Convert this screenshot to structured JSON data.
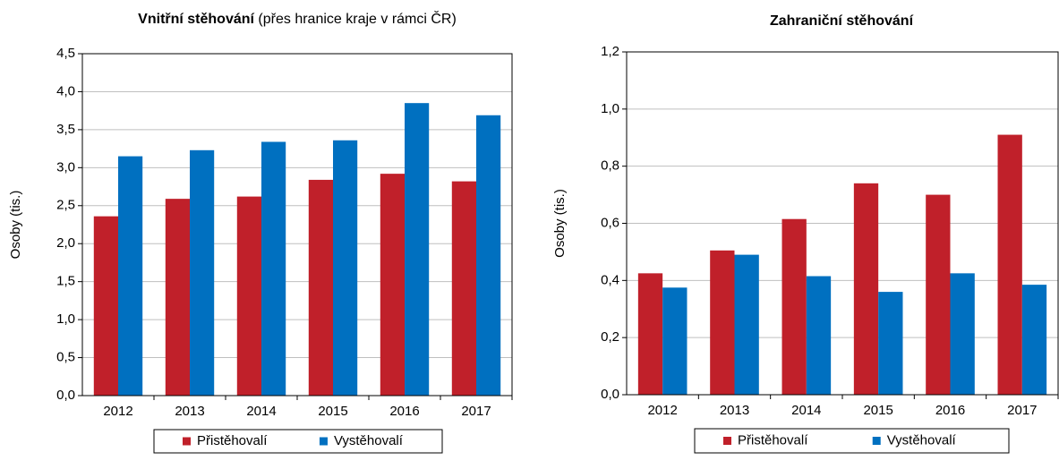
{
  "chart_data": [
    {
      "type": "bar",
      "title": "Vnitřní stěhování",
      "subtitle": "(přes hranice kraje v rámci ČR)",
      "y_label": "Osoby (tis.)",
      "categories": [
        "2012",
        "2013",
        "2014",
        "2015",
        "2016",
        "2017"
      ],
      "series": [
        {
          "name": "Přistěhovalí",
          "color": "#c0202a",
          "values": [
            2.36,
            2.59,
            2.62,
            2.84,
            2.92,
            2.82
          ]
        },
        {
          "name": "Vystěhovalí",
          "color": "#0070c0",
          "values": [
            3.15,
            3.23,
            3.34,
            3.36,
            3.85,
            3.69
          ]
        }
      ],
      "ylim": [
        0,
        4.5
      ],
      "yticks": [
        {
          "value": 0,
          "label": "0,0"
        },
        {
          "value": 0.5,
          "label": "0,5"
        },
        {
          "value": 1,
          "label": "1,0"
        },
        {
          "value": 1.5,
          "label": "1,5"
        },
        {
          "value": 2,
          "label": "2,0"
        },
        {
          "value": 2.5,
          "label": "2,5"
        },
        {
          "value": 3,
          "label": "3,0"
        },
        {
          "value": 3.5,
          "label": "3,5"
        },
        {
          "value": 4,
          "label": "4,0"
        },
        {
          "value": 4.5,
          "label": "4,5"
        }
      ],
      "grid": true,
      "legend": "bottom"
    },
    {
      "type": "bar",
      "title": "Zahraniční stěhování",
      "y_label": "Osoby (tis.)",
      "categories": [
        "2012",
        "2013",
        "2014",
        "2015",
        "2016",
        "2017"
      ],
      "series": [
        {
          "name": "Přistěhovalí",
          "color": "#c0202a",
          "values": [
            0.425,
            0.505,
            0.615,
            0.74,
            0.7,
            0.91
          ]
        },
        {
          "name": "Vystěhovalí",
          "color": "#0070c0",
          "values": [
            0.375,
            0.49,
            0.415,
            0.36,
            0.425,
            0.385
          ]
        }
      ],
      "ylim": [
        0,
        1.2
      ],
      "yticks": [
        {
          "value": 0,
          "label": "0,0"
        },
        {
          "value": 0.2,
          "label": "0,2"
        },
        {
          "value": 0.4,
          "label": "0,4"
        },
        {
          "value": 0.6,
          "label": "0,6"
        },
        {
          "value": 0.8,
          "label": "0,8"
        },
        {
          "value": 1,
          "label": "1,0"
        },
        {
          "value": 1.2,
          "label": "1,2"
        }
      ],
      "grid": true,
      "legend": "bottom"
    }
  ]
}
